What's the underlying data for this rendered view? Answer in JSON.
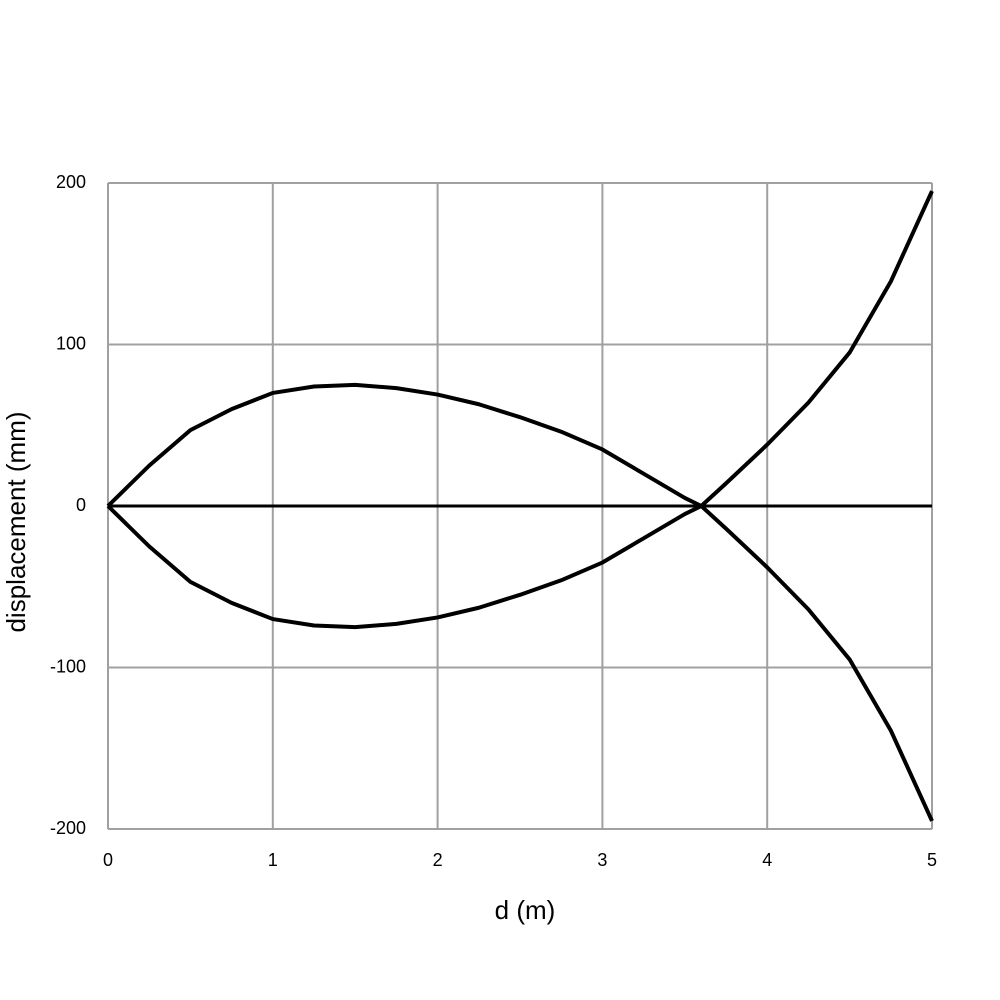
{
  "chart_data": {
    "type": "line",
    "xlabel": "d (m)",
    "ylabel": "displacement (mm)",
    "x": [
      0,
      0.25,
      0.5,
      0.75,
      1.0,
      1.25,
      1.5,
      1.75,
      2.0,
      2.25,
      2.5,
      2.75,
      3.0,
      3.25,
      3.5,
      3.6,
      3.75,
      4.0,
      4.25,
      4.5,
      4.75,
      5.0
    ],
    "series": [
      {
        "color": "#000000",
        "values": [
          0,
          25,
          47,
          60,
          70,
          74,
          75,
          73,
          69,
          63,
          55,
          46,
          35,
          20,
          5,
          0,
          -14,
          -38,
          -64,
          -95,
          -139,
          -195
        ]
      },
      {
        "color": "#000000",
        "values": [
          0,
          -25,
          -47,
          -60,
          -70,
          -74,
          -75,
          -73,
          -69,
          -63,
          -55,
          -46,
          -35,
          -20,
          -5,
          0,
          14,
          38,
          64,
          95,
          139,
          195
        ]
      }
    ],
    "xlim": [
      0,
      5
    ],
    "xticks": [
      0,
      1,
      2,
      3,
      4,
      5
    ],
    "ylim": [
      -200,
      200
    ],
    "yticks": [
      -200,
      -100,
      0,
      100,
      200
    ],
    "grid": true
  }
}
